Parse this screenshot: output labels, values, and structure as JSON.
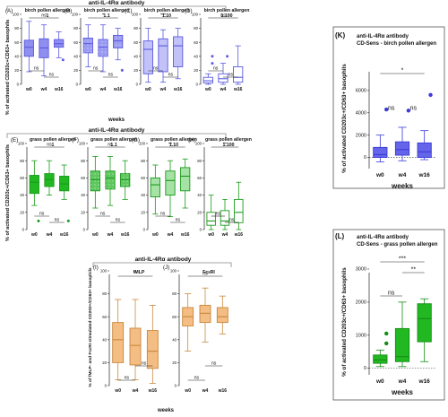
{
  "figure": {
    "group_labels": [
      {
        "text": "anti-IL-4Rα antibody"
      },
      {
        "text": "anti-IL-4Rα antibody"
      },
      {
        "text": "anti-IL-4Rα antibody"
      }
    ],
    "row_ylabels": [
      "% of activated CD203c+CD63+ basophils",
      "% of activated CD203c+/CD63+ basophils",
      "% of fMLP- and FcεRI stimulated CD203+/CD63+ basophils"
    ],
    "weeks_label": "weeks"
  },
  "chart_data": [
    {
      "id": "A",
      "type": "box",
      "title": "(A)",
      "subtitle": "birch pollen allergen 1",
      "color": "#5a5ae0",
      "fill": "#8f8ff0",
      "pattern": "solid",
      "categories": [
        "w0",
        "w4",
        "w16"
      ],
      "ylim": [
        0,
        100
      ],
      "yticks": [
        0,
        20,
        40,
        60,
        80,
        100
      ],
      "boxes": [
        {
          "min": 18,
          "q1": 40,
          "median": 53,
          "q3": 63,
          "max": 90
        },
        {
          "min": 12,
          "q1": 38,
          "median": 52,
          "q3": 65,
          "max": 85
        },
        {
          "min": 38,
          "q1": 53,
          "median": 58,
          "q3": 64,
          "max": 75,
          "outliers": [
            35
          ]
        }
      ],
      "brackets": [
        {
          "from": 0,
          "to": 2,
          "label": "ns",
          "level": "top"
        },
        {
          "from": 0,
          "to": 1,
          "label": "ns",
          "level": "low"
        },
        {
          "from": 1,
          "to": 2,
          "label": "ns",
          "level": "lower"
        }
      ]
    },
    {
      "id": "B",
      "type": "box",
      "title": "(B)",
      "subtitle": "birch pollen allergen 1.1",
      "color": "#5a5ae0",
      "fill": "#9b9bf2",
      "pattern": "dots",
      "categories": [
        "w0",
        "w4",
        "w16"
      ],
      "ylim": [
        0,
        100
      ],
      "yticks": [
        0,
        20,
        40,
        60,
        80,
        100
      ],
      "boxes": [
        {
          "min": 25,
          "q1": 45,
          "median": 58,
          "q3": 66,
          "max": 85
        },
        {
          "min": 18,
          "q1": 40,
          "median": 53,
          "q3": 64,
          "max": 85
        },
        {
          "min": 35,
          "q1": 52,
          "median": 62,
          "q3": 70,
          "max": 80,
          "outliers": [
            20
          ]
        }
      ],
      "brackets": [
        {
          "from": 0,
          "to": 2,
          "label": "*",
          "level": "top"
        },
        {
          "from": 0,
          "to": 1,
          "label": "ns",
          "level": "low"
        },
        {
          "from": 1,
          "to": 2,
          "label": "ns",
          "level": "lower"
        }
      ]
    },
    {
      "id": "C",
      "type": "box",
      "title": "(C)",
      "subtitle": "birch pollen allergen 1.10",
      "color": "#5a5ae0",
      "fill": "#c2c2f8",
      "pattern": "solid",
      "categories": [
        "w0",
        "w4",
        "w16"
      ],
      "ylim": [
        0,
        100
      ],
      "yticks": [
        0,
        20,
        40,
        60,
        80,
        100
      ],
      "boxes": [
        {
          "min": 3,
          "q1": 15,
          "median": 50,
          "q3": 62,
          "max": 80
        },
        {
          "min": 3,
          "q1": 18,
          "median": 55,
          "q3": 65,
          "max": 78
        },
        {
          "min": 8,
          "q1": 25,
          "median": 55,
          "q3": 68,
          "max": 80
        }
      ],
      "brackets": [
        {
          "from": 0,
          "to": 2,
          "label": "***",
          "level": "top"
        },
        {
          "from": 0,
          "to": 1,
          "label": "ns",
          "level": "low"
        },
        {
          "from": 1,
          "to": 2,
          "label": "ns",
          "level": "lower"
        }
      ]
    },
    {
      "id": "D",
      "type": "box",
      "title": "(D)",
      "subtitle": "birch pollen allergen 1.100",
      "color": "#5a5ae0",
      "fill": "#ffffff",
      "pattern": "light",
      "categories": [
        "w0",
        "w4",
        "w16"
      ],
      "ylim": [
        0,
        100
      ],
      "yticks": [
        0,
        20,
        40,
        60,
        80,
        100
      ],
      "boxes": [
        {
          "min": 0,
          "q1": 2,
          "median": 5,
          "q3": 10,
          "max": 15,
          "outliers": [
            30,
            40
          ]
        },
        {
          "min": 0,
          "q1": 3,
          "median": 8,
          "q3": 15,
          "max": 30,
          "outliers": [
            40
          ]
        },
        {
          "min": 0,
          "q1": 3,
          "median": 10,
          "q3": 25,
          "max": 55
        }
      ],
      "brackets": [
        {
          "from": 0,
          "to": 2,
          "label": "ns",
          "level": "top"
        },
        {
          "from": 0,
          "to": 1,
          "label": "ns",
          "level": "low"
        },
        {
          "from": 1,
          "to": 2,
          "label": "ns",
          "level": "lower"
        }
      ]
    },
    {
      "id": "E",
      "type": "box",
      "title": "(E)",
      "subtitle": "grass pollen allergen 1",
      "color": "#1a9a1a",
      "fill": "#22b822",
      "pattern": "solid",
      "categories": [
        "w0",
        "w4",
        "w16"
      ],
      "ylim": [
        0,
        100
      ],
      "yticks": [
        0,
        20,
        40,
        60,
        80,
        100
      ],
      "boxes": [
        {
          "min": 28,
          "q1": 42,
          "median": 55,
          "q3": 63,
          "max": 80,
          "outliers": [
            10
          ]
        },
        {
          "min": 40,
          "q1": 50,
          "median": 58,
          "q3": 65,
          "max": 80
        },
        {
          "min": 35,
          "q1": 45,
          "median": 53,
          "q3": 62,
          "max": 75,
          "outliers": [
            10
          ]
        }
      ],
      "brackets": [
        {
          "from": 0,
          "to": 2,
          "label": "ns",
          "level": "top"
        },
        {
          "from": 0,
          "to": 1,
          "label": "ns",
          "level": "low"
        },
        {
          "from": 1,
          "to": 2,
          "label": "ns",
          "level": "lower"
        }
      ]
    },
    {
      "id": "F",
      "type": "box",
      "title": "(F)",
      "subtitle": "grass pollen allergen 1.1",
      "color": "#1a9a1a",
      "fill": "#5ec85e",
      "pattern": "dots",
      "categories": [
        "w0",
        "w4",
        "w16"
      ],
      "ylim": [
        0,
        100
      ],
      "yticks": [
        0,
        20,
        40,
        60,
        80,
        100
      ],
      "boxes": [
        {
          "min": 25,
          "q1": 45,
          "median": 58,
          "q3": 68,
          "max": 85
        },
        {
          "min": 28,
          "q1": 47,
          "median": 60,
          "q3": 68,
          "max": 85
        },
        {
          "min": 35,
          "q1": 50,
          "median": 58,
          "q3": 65,
          "max": 80
        }
      ],
      "brackets": [
        {
          "from": 0,
          "to": 2,
          "label": "ns",
          "level": "top"
        },
        {
          "from": 0,
          "to": 1,
          "label": "ns",
          "level": "low"
        },
        {
          "from": 1,
          "to": 2,
          "label": "ns",
          "level": "lower"
        }
      ]
    },
    {
      "id": "G",
      "type": "box",
      "title": "(G)",
      "subtitle": "grass pollen allergen 1.10",
      "color": "#1a9a1a",
      "fill": "#a6e2a6",
      "pattern": "solid",
      "categories": [
        "w0",
        "w4",
        "w16"
      ],
      "ylim": [
        0,
        100
      ],
      "yticks": [
        0,
        20,
        40,
        60,
        80,
        100
      ],
      "boxes": [
        {
          "min": 18,
          "q1": 38,
          "median": 52,
          "q3": 60,
          "max": 75
        },
        {
          "min": 15,
          "q1": 40,
          "median": 57,
          "q3": 68,
          "max": 80
        },
        {
          "min": 25,
          "q1": 45,
          "median": 62,
          "q3": 72,
          "max": 82
        }
      ],
      "brackets": [
        {
          "from": 0,
          "to": 2,
          "label": "**",
          "level": "top"
        },
        {
          "from": 0,
          "to": 1,
          "label": "ns",
          "level": "low"
        },
        {
          "from": 1,
          "to": 2,
          "label": "ns",
          "level": "lower"
        }
      ]
    },
    {
      "id": "H",
      "type": "box",
      "title": "(H)",
      "subtitle": "grass pollen allergen 1.100",
      "color": "#1a9a1a",
      "fill": "#ffffff",
      "pattern": "light",
      "categories": [
        "w0",
        "w4",
        "w16"
      ],
      "ylim": [
        0,
        100
      ],
      "yticks": [
        0,
        20,
        40,
        60,
        80,
        100
      ],
      "boxes": [
        {
          "min": 0,
          "q1": 5,
          "median": 10,
          "q3": 20,
          "max": 40
        },
        {
          "min": 0,
          "q1": 5,
          "median": 10,
          "q3": 22,
          "max": 35
        },
        {
          "min": 0,
          "q1": 8,
          "median": 20,
          "q3": 35,
          "max": 55
        }
      ],
      "brackets": [
        {
          "from": 0,
          "to": 2,
          "label": "**",
          "level": "top"
        },
        {
          "from": 0,
          "to": 1,
          "label": "ns",
          "level": "low"
        },
        {
          "from": 1,
          "to": 2,
          "label": "ns",
          "level": "lower"
        }
      ]
    },
    {
      "id": "I",
      "type": "box",
      "title": "(I)",
      "subtitle": "fMLP",
      "color": "#c9883c",
      "fill": "#f3bd84",
      "pattern": "solid",
      "categories": [
        "w0",
        "w4",
        "w16"
      ],
      "ylim": [
        0,
        100
      ],
      "yticks": [
        0,
        20,
        40,
        60,
        80,
        100
      ],
      "boxes": [
        {
          "min": 5,
          "q1": 20,
          "median": 40,
          "q3": 55,
          "max": 75
        },
        {
          "min": 5,
          "q1": 18,
          "median": 35,
          "q3": 50,
          "max": 75
        },
        {
          "min": 2,
          "q1": 15,
          "median": 30,
          "q3": 48,
          "max": 70
        }
      ],
      "brackets": [
        {
          "from": 0,
          "to": 2,
          "label": "*",
          "level": "top"
        },
        {
          "from": 1,
          "to": 2,
          "label": "ns",
          "level": "mid"
        },
        {
          "from": 0,
          "to": 1,
          "label": "ns",
          "level": "bottom"
        }
      ]
    },
    {
      "id": "J",
      "type": "box",
      "title": "(J)",
      "subtitle": "FcεRI",
      "color": "#c9883c",
      "fill": "#f3bd84",
      "pattern": "solid",
      "categories": [
        "w0",
        "w4",
        "w16"
      ],
      "ylim": [
        0,
        100
      ],
      "yticks": [
        0,
        20,
        40,
        60,
        80,
        100
      ],
      "boxes": [
        {
          "min": 30,
          "q1": 52,
          "median": 60,
          "q3": 68,
          "max": 80
        },
        {
          "min": 38,
          "q1": 55,
          "median": 63,
          "q3": 70,
          "max": 85
        },
        {
          "min": 45,
          "q1": 55,
          "median": 60,
          "q3": 68,
          "max": 78
        }
      ],
      "brackets": [
        {
          "from": 0,
          "to": 2,
          "label": "ns",
          "level": "top"
        },
        {
          "from": 1,
          "to": 2,
          "label": "ns",
          "level": "mid"
        },
        {
          "from": 0,
          "to": 1,
          "label": "ns",
          "level": "bottom"
        }
      ]
    },
    {
      "id": "K",
      "type": "box",
      "title": "(K)",
      "subtitle": "anti-IL-4Rα antibody CD-Sens - birch pollen allergen",
      "ylabel": "% of activated CD203c+/CD63+ basophils",
      "xlabel": "weeks",
      "color": "#3a3ad8",
      "fill": "#6565ea",
      "pattern": "solid",
      "categories": [
        "w0",
        "w4",
        "w16"
      ],
      "ylim": [
        -1000,
        8000
      ],
      "yticks": [
        0,
        2000,
        4000,
        6000
      ],
      "boxes": [
        {
          "min": -400,
          "q1": 0,
          "median": 250,
          "q3": 900,
          "max": 2000,
          "outliers": [
            4300
          ]
        },
        {
          "min": -300,
          "q1": 200,
          "median": 700,
          "q3": 1400,
          "max": 2700,
          "outliers": [
            4200
          ]
        },
        {
          "min": -200,
          "q1": 0,
          "median": 500,
          "q3": 1300,
          "max": 2400,
          "outliers": [
            5600
          ]
        }
      ],
      "brackets": [
        {
          "from": 0,
          "to": 2,
          "label": "*",
          "level": "top"
        },
        {
          "from": 0,
          "to": 1,
          "label": "ns",
          "level": "mid"
        },
        {
          "from": 1,
          "to": 2,
          "label": "ns",
          "level": "mid"
        }
      ]
    },
    {
      "id": "L",
      "type": "box",
      "title": "(L)",
      "subtitle": "anti-IL-4Rα antibody CD-Sens - grass pollen allergen",
      "ylabel": "% of activated CD203c+/CD63+ basophils",
      "xlabel": "weeks",
      "color": "#148c14",
      "fill": "#22b822",
      "pattern": "solid",
      "categories": [
        "w0",
        "w4",
        "w16"
      ],
      "ylim": [
        -200,
        3000
      ],
      "yticks": [
        0,
        1000,
        2000,
        3000
      ],
      "boxes": [
        {
          "min": 50,
          "q1": 150,
          "median": 250,
          "q3": 400,
          "max": 550,
          "outliers": [
            750,
            1050
          ]
        },
        {
          "min": 50,
          "q1": 200,
          "median": 350,
          "q3": 1200,
          "max": 2000
        },
        {
          "min": 200,
          "q1": 800,
          "median": 1500,
          "q3": 1950,
          "max": 2100
        }
      ],
      "brackets": [
        {
          "from": 0,
          "to": 2,
          "label": "***",
          "level": "top"
        },
        {
          "from": 1,
          "to": 2,
          "label": "**",
          "level": "mid"
        },
        {
          "from": 0,
          "to": 1,
          "label": "ns",
          "level": "low"
        }
      ]
    }
  ]
}
